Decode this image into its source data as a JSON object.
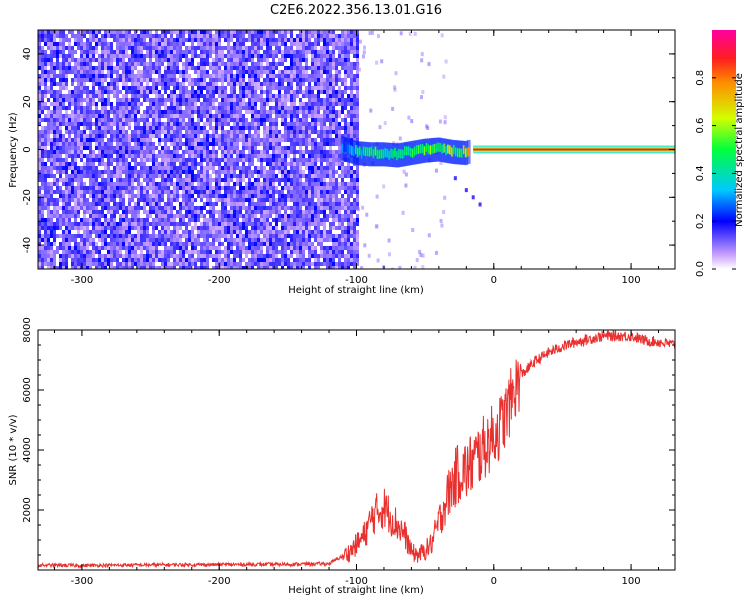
{
  "title": "C2E6.2022.356.13.01.G16",
  "chart_data": [
    {
      "type": "heatmap",
      "xlabel": "Height of straight line (km)",
      "ylabel": "Frequency (Hz)",
      "xlim": [
        -332,
        132
      ],
      "ylim": [
        -50,
        50
      ],
      "xticks": [
        -300,
        -200,
        -100,
        0,
        100
      ],
      "xtick_labels": [
        "-300",
        "-200",
        "-100",
        "0",
        "100"
      ],
      "yticks": [
        -40,
        -20,
        0,
        20,
        40
      ],
      "ytick_labels": [
        "-40",
        "-20",
        "0",
        "20",
        "40"
      ],
      "noise_region_x": [
        -332,
        -100
      ],
      "signal_ridge": [
        {
          "x": -110,
          "y": 0.5,
          "amp": 0.3
        },
        {
          "x": -100,
          "y": -1.5,
          "amp": 0.4
        },
        {
          "x": -90,
          "y": -2.0,
          "amp": 0.45
        },
        {
          "x": -80,
          "y": -2.0,
          "amp": 0.45
        },
        {
          "x": -70,
          "y": -2.5,
          "amp": 0.5
        },
        {
          "x": -60,
          "y": -1.5,
          "amp": 0.5
        },
        {
          "x": -50,
          "y": -0.5,
          "amp": 0.55
        },
        {
          "x": -40,
          "y": 0.0,
          "amp": 0.55
        },
        {
          "x": -30,
          "y": -1.0,
          "amp": 0.55
        },
        {
          "x": -20,
          "y": -1.5,
          "amp": 0.6
        },
        {
          "x": -15,
          "y": 0.0,
          "amp": 0.9
        },
        {
          "x": 0,
          "y": 0.0,
          "amp": 0.9
        },
        {
          "x": 10,
          "y": 0.5,
          "amp": 0.9
        },
        {
          "x": 130,
          "y": 0.0,
          "amp": 0.9
        }
      ],
      "colorbar": {
        "label": "Normalized spectral amplitude",
        "range": [
          0.0,
          1.0
        ],
        "ticks": [
          0.0,
          0.2,
          0.4,
          0.6,
          0.8
        ],
        "tick_labels": [
          "0.0",
          "0.2",
          "0.4",
          "0.6",
          "0.8"
        ]
      }
    },
    {
      "type": "line",
      "xlabel": "Height of straight line (km)",
      "ylabel": "SNR (10 * v/v)",
      "xlim": [
        -332,
        132
      ],
      "ylim": [
        0,
        8000
      ],
      "xticks": [
        -300,
        -200,
        -100,
        0,
        100
      ],
      "xtick_labels": [
        "-300",
        "-200",
        "-100",
        "0",
        "100"
      ],
      "yticks": [
        2000,
        4000,
        6000,
        8000
      ],
      "ytick_labels": [
        "2000",
        "4000",
        "6000",
        "8000"
      ],
      "series": [
        {
          "name": "SNR",
          "color": "#e8302e",
          "x": [
            -332,
            -300,
            -250,
            -200,
            -150,
            -120,
            -105,
            -95,
            -88,
            -80,
            -72,
            -65,
            -60,
            -55,
            -50,
            -45,
            -40,
            -35,
            -30,
            -25,
            -20,
            -15,
            -10,
            -5,
            0,
            5,
            10,
            15,
            20,
            30,
            40,
            50,
            60,
            70,
            80,
            90,
            100,
            110,
            120,
            132
          ],
          "values": [
            160,
            150,
            170,
            180,
            190,
            210,
            600,
            1100,
            1800,
            2100,
            1600,
            1200,
            600,
            500,
            650,
            900,
            1600,
            2300,
            2900,
            3300,
            3300,
            3600,
            3900,
            4200,
            4500,
            4800,
            5300,
            6000,
            6500,
            6950,
            7250,
            7450,
            7600,
            7700,
            7800,
            7800,
            7800,
            7650,
            7600,
            7500
          ]
        }
      ]
    }
  ]
}
